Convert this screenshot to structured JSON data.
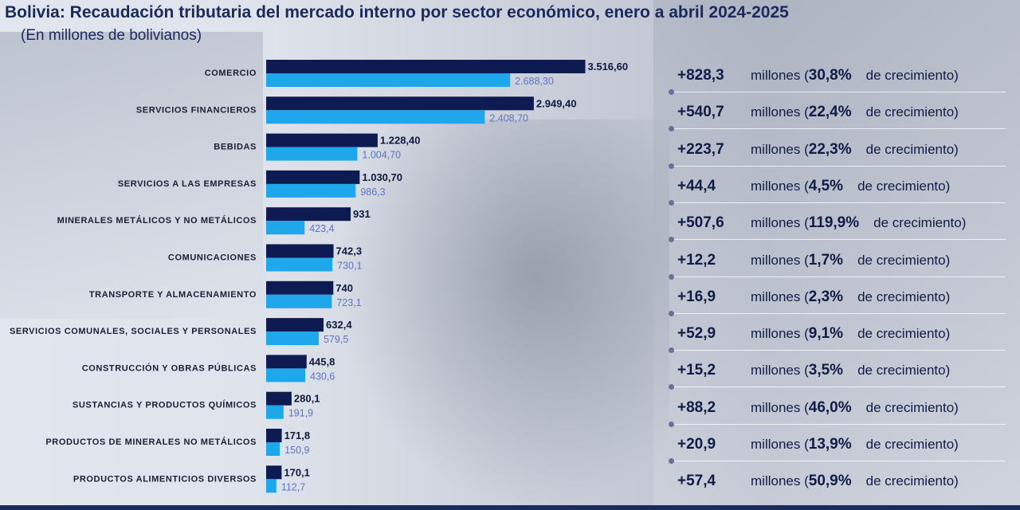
{
  "header": {
    "title": "Bolivia: Recaudación tributaria del mercado interno por sector económico, enero a abril 2024-2025",
    "subtitle": "(En millones de bolivianos)"
  },
  "colors": {
    "series_2025": "#0e1b52",
    "series_2024": "#1ea7ea",
    "accent_text": "#1b2a5c"
  },
  "chart_data": {
    "type": "bar",
    "orientation": "horizontal",
    "title": "Bolivia: Recaudación tributaria del mercado interno por sector económico, enero a abril 2024-2025",
    "subtitle": "(En millones de bolivianos)",
    "categories": [
      "COMERCIO",
      "SERVICIOS FINANCIEROS",
      "BEBIDAS",
      "SERVICIOS A LAS EMPRESAS",
      "MINERALES METÁLICOS Y NO METÁLICOS",
      "COMUNICACIONES",
      "TRANSPORTE Y ALMACENAMIENTO",
      "SERVICIOS COMUNALES, SOCIALES Y PERSONALES",
      "CONSTRUCCIÓN Y OBRAS PÚBLICAS",
      "SUSTANCIAS Y PRODUCTOS QUÍMICOS",
      "PRODUCTOS DE MINERALES NO METÁLICOS",
      "PRODUCTOS ALIMENTICIOS DIVERSOS"
    ],
    "series": [
      {
        "values": [
          3516.6,
          2949.4,
          1228.4,
          1030.7,
          931,
          742.3,
          740,
          632.4,
          445.8,
          280.1,
          171.8,
          170.1
        ],
        "labels": [
          "3.516,60",
          "2.949,40",
          "1.228,40",
          "1.030,70",
          "931",
          "742,3",
          "740",
          "632,4",
          "445,8",
          "280,1",
          "171,8",
          "170,1"
        ]
      },
      {
        "values": [
          2688.3,
          2408.7,
          1004.7,
          986.3,
          423.4,
          730.1,
          723.1,
          579.5,
          430.6,
          191.9,
          150.9,
          112.7
        ],
        "labels": [
          "2.688,30",
          "2.408,70",
          "1.004,70",
          "986,3",
          "423,4",
          "730,1",
          "723,1",
          "579,5",
          "430,6",
          "191,9",
          "150,9",
          "112,7"
        ]
      }
    ],
    "xlim": [
      0,
      3600
    ],
    "grid": false,
    "legend": "none"
  },
  "growth": {
    "unit_label": "millones (",
    "suffix": "de crecimiento)",
    "rows": [
      {
        "amount": "+828,3",
        "percent": "30,8%"
      },
      {
        "amount": "+540,7",
        "percent": "22,4%"
      },
      {
        "amount": "+223,7",
        "percent": "22,3%"
      },
      {
        "amount": "+44,4",
        "percent": "4,5%"
      },
      {
        "amount": "+507,6",
        "percent": "119,9%"
      },
      {
        "amount": "+12,2",
        "percent": "1,7%"
      },
      {
        "amount": "+16,9",
        "percent": "2,3%"
      },
      {
        "amount": "+52,9",
        "percent": "9,1%"
      },
      {
        "amount": "+15,2",
        "percent": "3,5%"
      },
      {
        "amount": "+88,2",
        "percent": "46,0%"
      },
      {
        "amount": "+20,9",
        "percent": "13,9%"
      },
      {
        "amount": "+57,4",
        "percent": "50,9%"
      }
    ]
  }
}
